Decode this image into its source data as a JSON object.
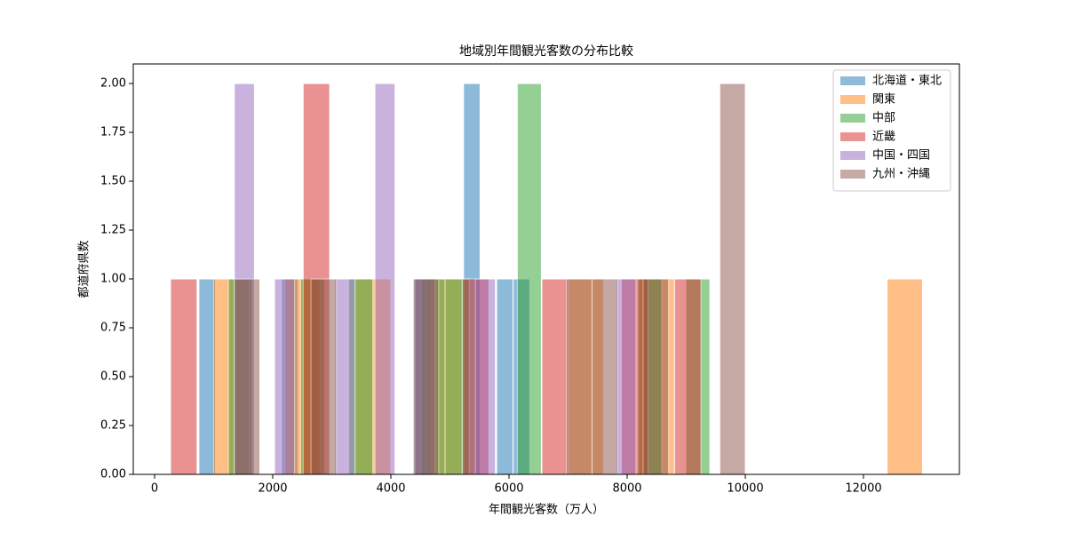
{
  "chart_data": {
    "type": "histogram",
    "title": "地域別年間観光客数の分布比較",
    "x_label": "年間観光客数（万人）",
    "y_label": "都道府県数",
    "xlim": [
      -361,
      13624
    ],
    "ylim": [
      0,
      2.1
    ],
    "xticks": [
      0,
      2000,
      4000,
      6000,
      8000,
      10000,
      12000
    ],
    "yticks": [
      {
        "value": 0,
        "label": "0.00"
      },
      {
        "value": 0.25,
        "label": "0.25"
      },
      {
        "value": 0.5,
        "label": "0.50"
      },
      {
        "value": 0.75,
        "label": "0.75"
      },
      {
        "value": 1,
        "label": "1.00"
      },
      {
        "value": 1.25,
        "label": "1.25"
      },
      {
        "value": 1.5,
        "label": "1.50"
      },
      {
        "value": 1.75,
        "label": "1.75"
      },
      {
        "value": 2,
        "label": "2.00"
      }
    ],
    "legend": "upper right",
    "alpha": 0.5,
    "series": [
      {
        "name": "北海道・東北",
        "color": "#1f77b4",
        "bins": [
          750,
          1030,
          1310,
          1590,
          1870,
          2150,
          2430,
          2710,
          2990,
          3270,
          3550,
          3830,
          4110,
          4390,
          4670,
          4950,
          5230,
          5510,
          5790,
          6070,
          6350
        ],
        "values": [
          1,
          0,
          0,
          0,
          0,
          1,
          0,
          0,
          0,
          0,
          0,
          0,
          0,
          1,
          0,
          0,
          2,
          0,
          1,
          1
        ]
      },
      {
        "name": "関東",
        "color": "#ff7f0e",
        "bins": [
          1000,
          1600,
          2200,
          2800,
          3400,
          4000,
          4600,
          5200,
          5800,
          6400,
          7000,
          7600,
          8200,
          8800,
          9400,
          10000,
          10600,
          11200,
          11800,
          12400,
          13000
        ],
        "values": [
          1,
          0,
          1,
          0,
          1,
          0,
          1,
          0,
          0,
          0,
          1,
          0,
          1,
          0,
          0,
          0,
          0,
          0,
          0,
          1
        ]
      },
      {
        "name": "中部",
        "color": "#2ca02c",
        "bins": [
          1250,
          1657.5,
          2065,
          2472.5,
          2880,
          3287.5,
          3695,
          4102.5,
          4510,
          4917.5,
          5325,
          5732.5,
          6140,
          6547.5,
          6955,
          7362.5,
          7770,
          8177.5,
          8585,
          8992.5,
          9400
        ],
        "values": [
          1,
          0,
          0,
          1,
          0,
          1,
          0,
          0,
          1,
          1,
          0,
          0,
          2,
          0,
          0,
          0,
          0,
          1,
          0,
          1
        ]
      },
      {
        "name": "近畿",
        "color": "#d62728",
        "bins": [
          270,
          719,
          1168,
          1617,
          2066,
          2515,
          2964,
          3413,
          3862,
          4311,
          4760,
          5209,
          5658,
          6107,
          6556,
          7005,
          7454,
          7903,
          8352,
          8801,
          9250
        ],
        "values": [
          1,
          0,
          0,
          0,
          0,
          2,
          0,
          0,
          0,
          0,
          0,
          1,
          0,
          0,
          1,
          0,
          0,
          1,
          0,
          1
        ]
      },
      {
        "name": "中国・四国",
        "color": "#9467bd",
        "bins": [
          1350,
          1690,
          2030,
          2370,
          2710,
          3050,
          3390,
          3730,
          4070,
          4410,
          4750,
          5090,
          5430,
          5770,
          6110,
          6450,
          6790,
          7130,
          7470,
          7810,
          8150
        ],
        "values": [
          2,
          0,
          1,
          0,
          0,
          1,
          0,
          2,
          0,
          1,
          0,
          0,
          1,
          0,
          0,
          0,
          0,
          0,
          0,
          1
        ]
      },
      {
        "name": "九州・沖縄",
        "color": "#8c564b",
        "bins": [
          1350,
          1782.5,
          2215,
          2647.5,
          3080,
          3512.5,
          3945,
          4377.5,
          4810,
          5242.5,
          5675,
          6107.5,
          6540,
          6972.5,
          7405,
          7837.5,
          8270,
          8702.5,
          9135,
          9567.5,
          10000
        ],
        "values": [
          1,
          0,
          0,
          1,
          0,
          0,
          0,
          1,
          0,
          0,
          0,
          0,
          0,
          1,
          1,
          0,
          1,
          0,
          0,
          2
        ]
      }
    ]
  }
}
